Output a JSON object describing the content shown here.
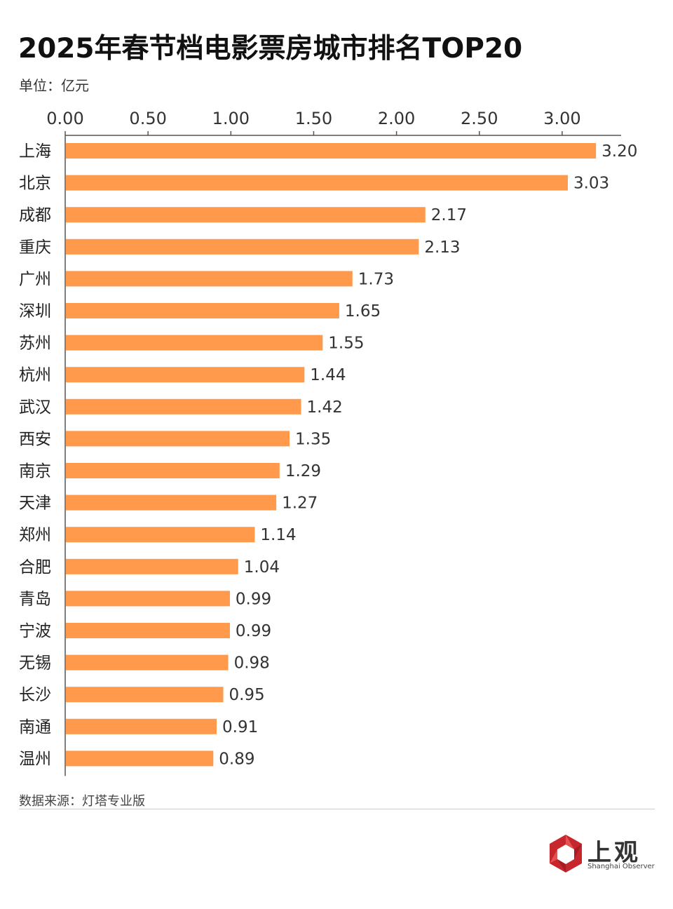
{
  "title": "2025年春节档电影票房城市排名TOP20",
  "unit_label": "单位：亿元",
  "source": "数据来源：灯塔专业版",
  "brand": {
    "name": "上观",
    "subtitle": "Shanghai Observer",
    "color": "#c7262d"
  },
  "colors": {
    "bar": "#ff9a4d",
    "axis": "#555555"
  },
  "chart_data": {
    "type": "bar",
    "orientation": "horizontal",
    "title": "2025年春节档电影票房城市排名TOP20",
    "xlabel": "",
    "ylabel": "",
    "xlim": [
      0,
      3.35
    ],
    "ticks": [
      "0.00",
      "0.50",
      "1.00",
      "1.50",
      "2.00",
      "2.50",
      "3.00"
    ],
    "tick_values": [
      0,
      0.5,
      1.0,
      1.5,
      2.0,
      2.5,
      3.0
    ],
    "axis_position": "top",
    "grid": false,
    "categories": [
      "上海",
      "北京",
      "成都",
      "重庆",
      "广州",
      "深圳",
      "苏州",
      "杭州",
      "武汉",
      "西安",
      "南京",
      "天津",
      "郑州",
      "合肥",
      "青岛",
      "宁波",
      "无锡",
      "长沙",
      "南通",
      "温州"
    ],
    "values": [
      3.2,
      3.03,
      2.17,
      2.13,
      1.73,
      1.65,
      1.55,
      1.44,
      1.42,
      1.35,
      1.29,
      1.27,
      1.14,
      1.04,
      0.99,
      0.99,
      0.98,
      0.95,
      0.91,
      0.89
    ],
    "value_labels": [
      "3.20",
      "3.03",
      "2.17",
      "2.13",
      "1.73",
      "1.65",
      "1.55",
      "1.44",
      "1.42",
      "1.35",
      "1.29",
      "1.27",
      "1.14",
      "1.04",
      "0.99",
      "0.99",
      "0.98",
      "0.95",
      "0.91",
      "0.89"
    ]
  }
}
